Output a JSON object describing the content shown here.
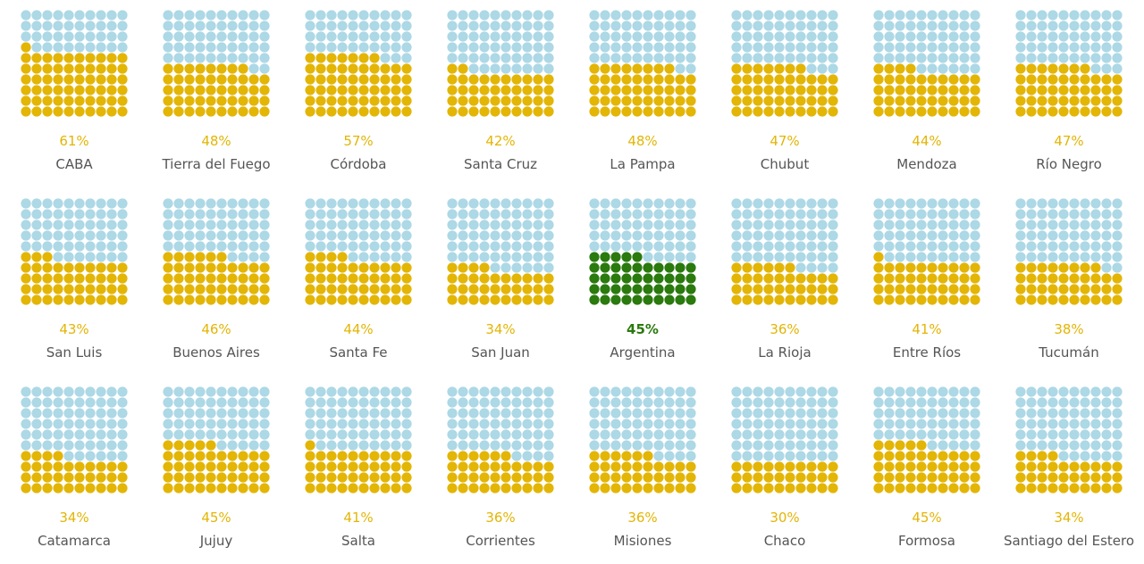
{
  "colors": {
    "filled": "#e3b505",
    "empty": "#add8e6",
    "highlight": "#2a7a0e"
  },
  "chart_data": {
    "type": "waffle",
    "grid": {
      "rows": 10,
      "cols": 10
    },
    "items": [
      {
        "label": "CABA",
        "value": 61,
        "value_label": "61%"
      },
      {
        "label": "Tierra del Fuego",
        "value": 48,
        "value_label": "48%"
      },
      {
        "label": "Córdoba",
        "value": 57,
        "value_label": "57%"
      },
      {
        "label": "Santa Cruz",
        "value": 42,
        "value_label": "42%"
      },
      {
        "label": "La Pampa",
        "value": 48,
        "value_label": "48%"
      },
      {
        "label": "Chubut",
        "value": 47,
        "value_label": "47%"
      },
      {
        "label": "Mendoza",
        "value": 44,
        "value_label": "44%"
      },
      {
        "label": "Río Negro",
        "value": 47,
        "value_label": "47%"
      },
      {
        "label": "San Luis",
        "value": 43,
        "value_label": "43%"
      },
      {
        "label": "Buenos Aires",
        "value": 46,
        "value_label": "46%"
      },
      {
        "label": "Santa Fe",
        "value": 44,
        "value_label": "44%"
      },
      {
        "label": "San Juan",
        "value": 34,
        "value_label": "34%"
      },
      {
        "label": "Argentina",
        "value": 45,
        "value_label": "45%",
        "highlight": true
      },
      {
        "label": "La Rioja",
        "value": 36,
        "value_label": "36%"
      },
      {
        "label": "Entre Ríos",
        "value": 41,
        "value_label": "41%"
      },
      {
        "label": "Tucumán",
        "value": 38,
        "value_label": "38%"
      },
      {
        "label": "Catamarca",
        "value": 34,
        "value_label": "34%"
      },
      {
        "label": "Jujuy",
        "value": 45,
        "value_label": "45%"
      },
      {
        "label": "Salta",
        "value": 41,
        "value_label": "41%"
      },
      {
        "label": "Corrientes",
        "value": 36,
        "value_label": "36%"
      },
      {
        "label": "Misiones",
        "value": 36,
        "value_label": "36%"
      },
      {
        "label": "Chaco",
        "value": 30,
        "value_label": "30%"
      },
      {
        "label": "Formosa",
        "value": 45,
        "value_label": "45%"
      },
      {
        "label": "Santiago del Estero",
        "value": 34,
        "value_label": "34%"
      }
    ]
  }
}
